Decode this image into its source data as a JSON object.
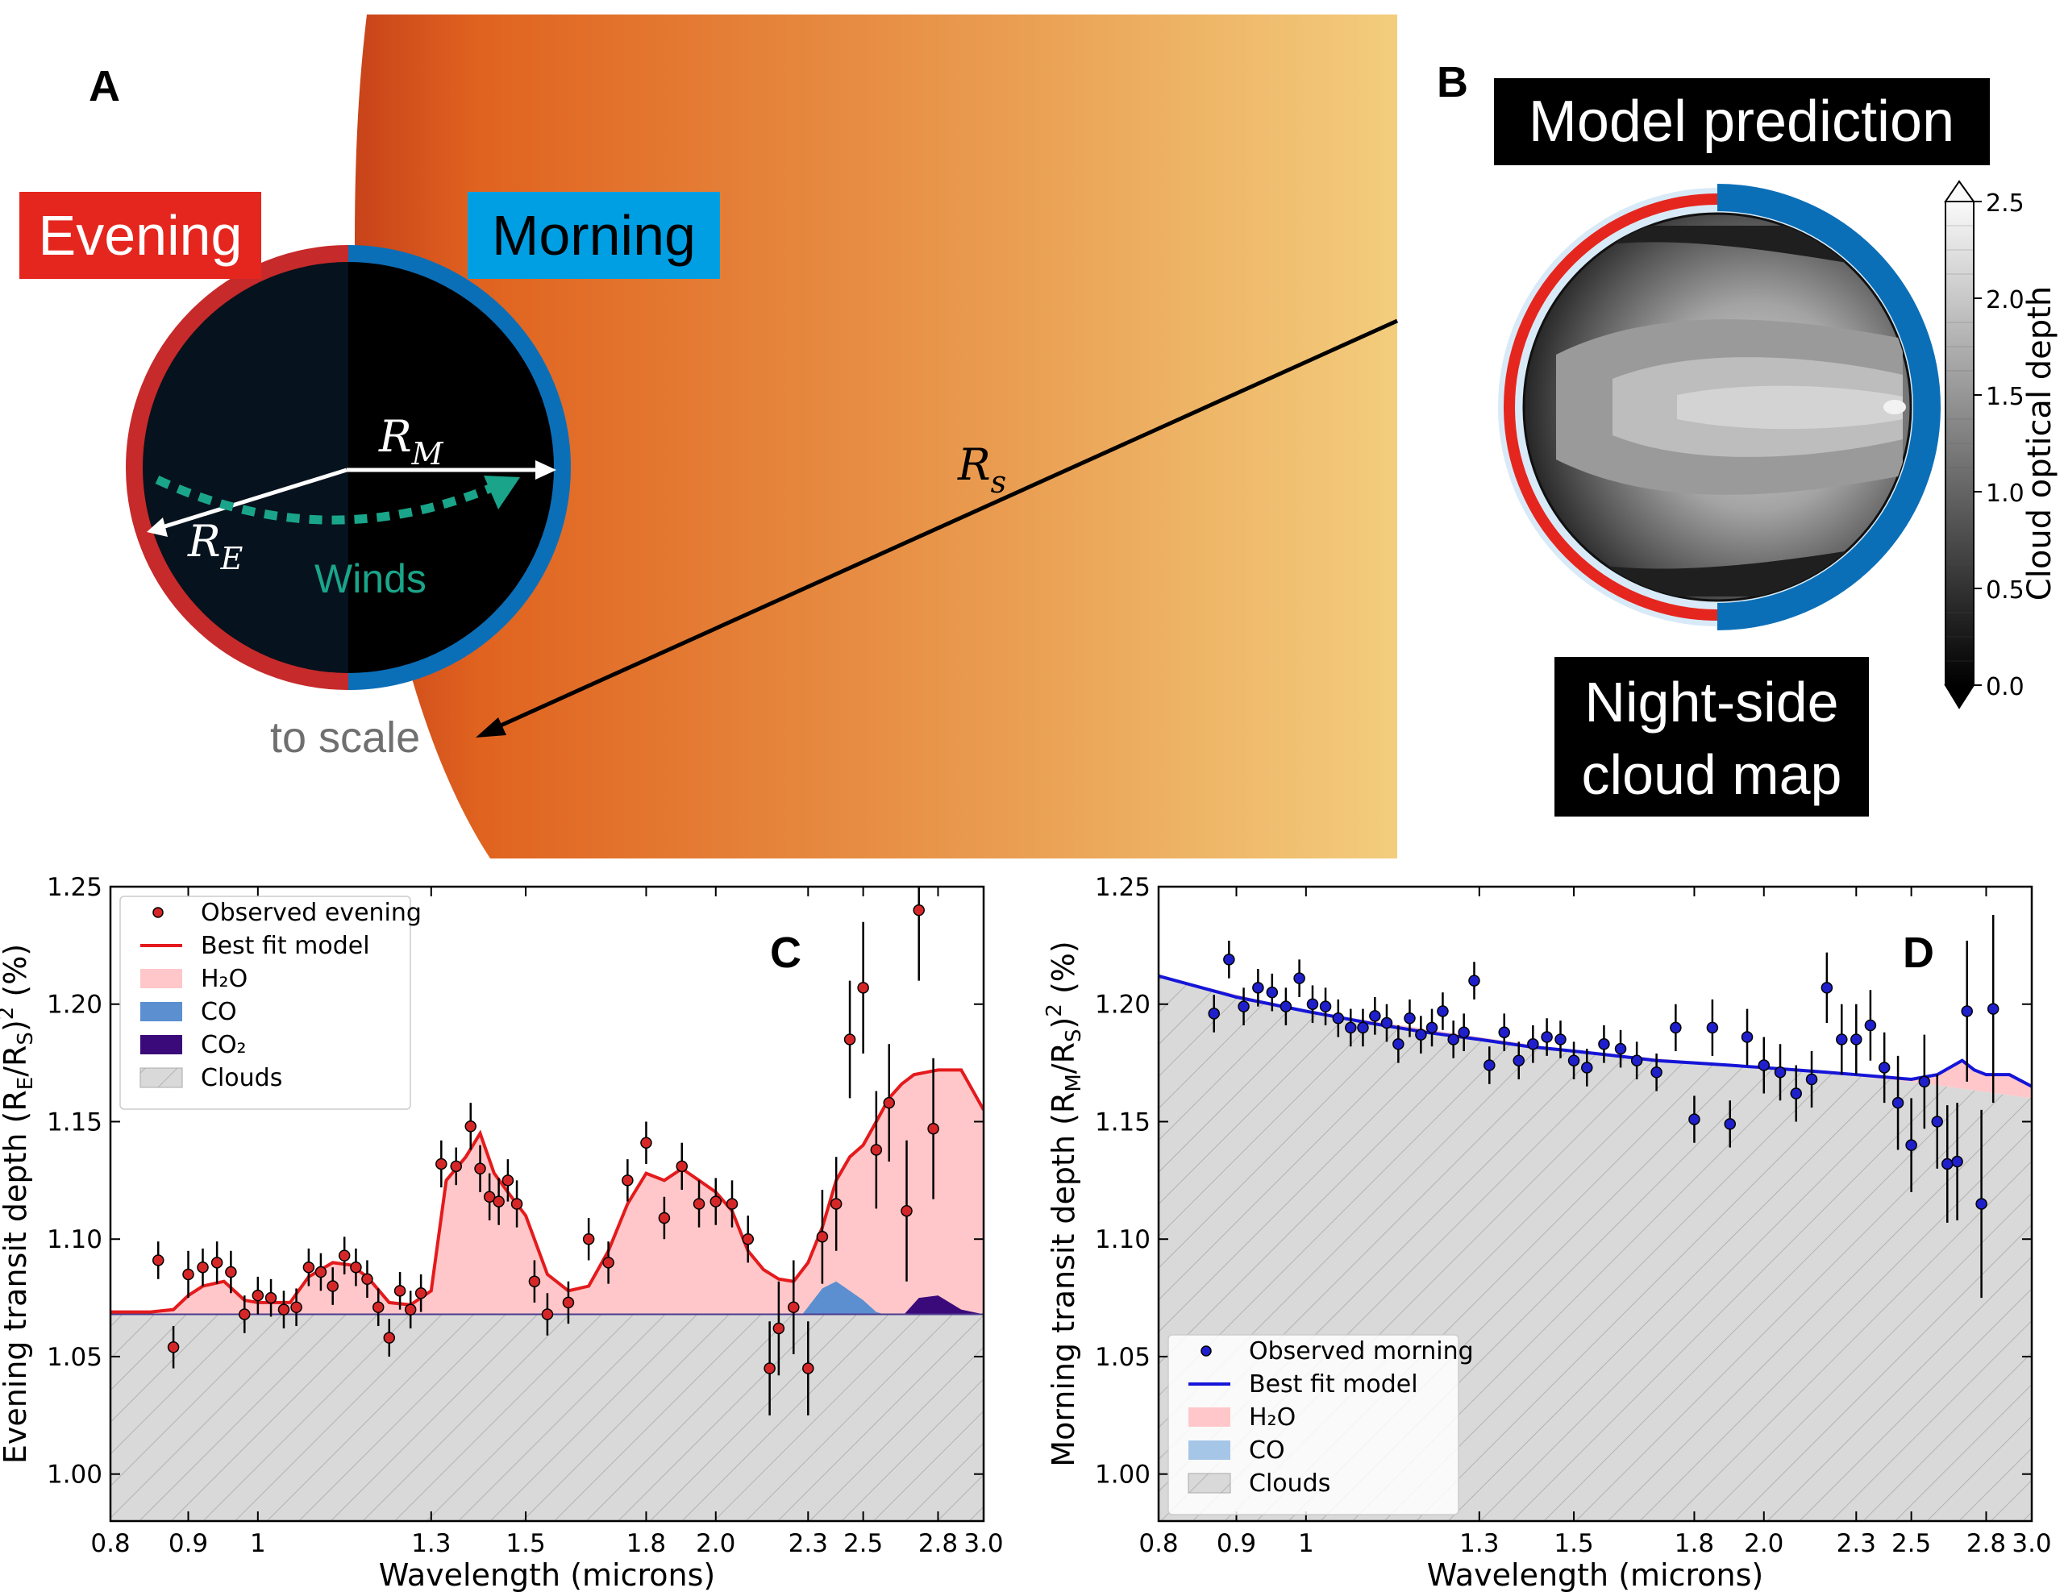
{
  "panel_a": {
    "letter": "A",
    "evening_label": "Evening",
    "morning_label": "Morning",
    "r_m": "R",
    "r_m_sub": "M",
    "r_e": "R",
    "r_e_sub": "E",
    "r_s": "R",
    "r_s_sub": "s",
    "winds": "Winds",
    "scale_note": "to scale",
    "colors": {
      "evening": "#e5261f",
      "morning": "#009fe3",
      "winds": "#1aa58a"
    }
  },
  "panel_b": {
    "letter": "B",
    "title": "Model prediction",
    "caption_line1": "Night-side",
    "caption_line2": "cloud map",
    "colorbar_label": "Cloud optical depth",
    "colorbar_ticks": [
      "0.0",
      "0.5",
      "1.0",
      "1.5",
      "2.0",
      "2.5"
    ]
  },
  "chart_data": [
    {
      "type": "scatter",
      "panel": "C",
      "xlabel": "Wavelength (microns)",
      "ylabel": "Evening transit depth (R_E/R_S)^2 (%)",
      "xscale": "log",
      "xlim": [
        0.8,
        3.0
      ],
      "ylim": [
        0.98,
        1.25
      ],
      "xticks": [
        "0.8",
        "0.9",
        "1",
        "1.3",
        "1.5",
        "1.8",
        "2.0",
        "2.3",
        "2.5",
        "2.8",
        "3.0"
      ],
      "yticks": [
        "1.00",
        "1.05",
        "1.10",
        "1.15",
        "1.20",
        "1.25"
      ],
      "legend": [
        "Observed evening",
        "Best fit model",
        "H₂O",
        "CO",
        "CO₂",
        "Clouds"
      ],
      "legend_position": "upper-left",
      "cloud_level": 1.068,
      "colors": {
        "points": "#d62728",
        "model": "#e41a1c",
        "h2o": "#ffc7c9",
        "co": "#5b8fcf",
        "co2": "#3b0a7a",
        "clouds": "#d9d9d9"
      },
      "observed": [
        [
          0.86,
          1.091,
          0.008
        ],
        [
          0.88,
          1.054,
          0.009
        ],
        [
          0.9,
          1.085,
          0.01
        ],
        [
          0.92,
          1.088,
          0.008
        ],
        [
          0.94,
          1.09,
          0.009
        ],
        [
          0.96,
          1.086,
          0.009
        ],
        [
          0.98,
          1.068,
          0.008
        ],
        [
          1.0,
          1.076,
          0.008
        ],
        [
          1.02,
          1.075,
          0.008
        ],
        [
          1.04,
          1.07,
          0.008
        ],
        [
          1.06,
          1.071,
          0.008
        ],
        [
          1.08,
          1.088,
          0.008
        ],
        [
          1.1,
          1.086,
          0.008
        ],
        [
          1.12,
          1.08,
          0.008
        ],
        [
          1.14,
          1.093,
          0.008
        ],
        [
          1.16,
          1.088,
          0.008
        ],
        [
          1.18,
          1.083,
          0.008
        ],
        [
          1.2,
          1.071,
          0.008
        ],
        [
          1.22,
          1.058,
          0.008
        ],
        [
          1.24,
          1.078,
          0.008
        ],
        [
          1.26,
          1.07,
          0.008
        ],
        [
          1.28,
          1.077,
          0.008
        ],
        [
          1.32,
          1.132,
          0.01
        ],
        [
          1.35,
          1.131,
          0.008
        ],
        [
          1.38,
          1.148,
          0.01
        ],
        [
          1.4,
          1.13,
          0.01
        ],
        [
          1.42,
          1.118,
          0.01
        ],
        [
          1.44,
          1.116,
          0.01
        ],
        [
          1.46,
          1.125,
          0.009
        ],
        [
          1.48,
          1.115,
          0.01
        ],
        [
          1.52,
          1.082,
          0.009
        ],
        [
          1.55,
          1.068,
          0.009
        ],
        [
          1.6,
          1.073,
          0.009
        ],
        [
          1.65,
          1.1,
          0.009
        ],
        [
          1.7,
          1.09,
          0.009
        ],
        [
          1.75,
          1.125,
          0.009
        ],
        [
          1.8,
          1.141,
          0.009
        ],
        [
          1.85,
          1.109,
          0.009
        ],
        [
          1.9,
          1.131,
          0.01
        ],
        [
          1.95,
          1.115,
          0.01
        ],
        [
          2.0,
          1.116,
          0.01
        ],
        [
          2.05,
          1.115,
          0.01
        ],
        [
          2.1,
          1.1,
          0.01
        ],
        [
          2.17,
          1.045,
          0.02
        ],
        [
          2.2,
          1.062,
          0.02
        ],
        [
          2.25,
          1.071,
          0.02
        ],
        [
          2.3,
          1.045,
          0.02
        ],
        [
          2.35,
          1.101,
          0.02
        ],
        [
          2.4,
          1.115,
          0.02
        ],
        [
          2.45,
          1.185,
          0.025
        ],
        [
          2.5,
          1.207,
          0.028
        ],
        [
          2.55,
          1.138,
          0.025
        ],
        [
          2.6,
          1.158,
          0.025
        ],
        [
          2.67,
          1.112,
          0.03
        ],
        [
          2.72,
          1.24,
          0.03
        ],
        [
          2.78,
          1.147,
          0.03
        ]
      ],
      "model": [
        [
          0.8,
          1.069
        ],
        [
          0.85,
          1.069
        ],
        [
          0.88,
          1.07
        ],
        [
          0.9,
          1.076
        ],
        [
          0.92,
          1.08
        ],
        [
          0.95,
          1.082
        ],
        [
          0.98,
          1.074
        ],
        [
          1.0,
          1.073
        ],
        [
          1.05,
          1.073
        ],
        [
          1.08,
          1.084
        ],
        [
          1.12,
          1.09
        ],
        [
          1.15,
          1.089
        ],
        [
          1.18,
          1.084
        ],
        [
          1.22,
          1.073
        ],
        [
          1.26,
          1.072
        ],
        [
          1.3,
          1.078
        ],
        [
          1.33,
          1.125
        ],
        [
          1.37,
          1.135
        ],
        [
          1.4,
          1.145
        ],
        [
          1.43,
          1.128
        ],
        [
          1.46,
          1.12
        ],
        [
          1.5,
          1.11
        ],
        [
          1.55,
          1.085
        ],
        [
          1.6,
          1.078
        ],
        [
          1.65,
          1.08
        ],
        [
          1.7,
          1.095
        ],
        [
          1.75,
          1.115
        ],
        [
          1.8,
          1.128
        ],
        [
          1.85,
          1.125
        ],
        [
          1.9,
          1.13
        ],
        [
          1.95,
          1.125
        ],
        [
          2.0,
          1.12
        ],
        [
          2.05,
          1.112
        ],
        [
          2.1,
          1.095
        ],
        [
          2.15,
          1.087
        ],
        [
          2.2,
          1.083
        ],
        [
          2.25,
          1.082
        ],
        [
          2.3,
          1.09
        ],
        [
          2.35,
          1.105
        ],
        [
          2.4,
          1.125
        ],
        [
          2.45,
          1.135
        ],
        [
          2.5,
          1.14
        ],
        [
          2.55,
          1.15
        ],
        [
          2.6,
          1.16
        ],
        [
          2.65,
          1.166
        ],
        [
          2.7,
          1.17
        ],
        [
          2.8,
          1.172
        ],
        [
          2.9,
          1.172
        ],
        [
          3.0,
          1.155
        ]
      ],
      "co_feature": [
        [
          2.28,
          1.068
        ],
        [
          2.35,
          1.079
        ],
        [
          2.4,
          1.082
        ],
        [
          2.45,
          1.078
        ],
        [
          2.5,
          1.074
        ],
        [
          2.55,
          1.069
        ],
        [
          2.58,
          1.068
        ]
      ],
      "co2_feature": [
        [
          2.66,
          1.068
        ],
        [
          2.72,
          1.075
        ],
        [
          2.8,
          1.076
        ],
        [
          2.9,
          1.07
        ],
        [
          3.0,
          1.068
        ]
      ]
    },
    {
      "type": "scatter",
      "panel": "D",
      "xlabel": "Wavelength (microns)",
      "ylabel": "Morning transit depth (R_M/R_S)^2 (%)",
      "xscale": "log",
      "xlim": [
        0.8,
        3.0
      ],
      "ylim": [
        0.98,
        1.25
      ],
      "xticks": [
        "0.8",
        "0.9",
        "1",
        "1.3",
        "1.5",
        "1.8",
        "2.0",
        "2.3",
        "2.5",
        "2.8",
        "3.0"
      ],
      "yticks": [
        "1.00",
        "1.05",
        "1.10",
        "1.15",
        "1.20",
        "1.25"
      ],
      "legend": [
        "Observed morning",
        "Best fit model",
        "H₂O",
        "CO",
        "Clouds"
      ],
      "legend_position": "lower-left",
      "colors": {
        "points": "#1f1fcc",
        "model": "#1515d8",
        "h2o": "#ffc7c9",
        "co": "#a6c6e8",
        "clouds": "#d9d9d9"
      },
      "observed": [
        [
          0.87,
          1.196,
          0.008
        ],
        [
          0.89,
          1.219,
          0.008
        ],
        [
          0.91,
          1.199,
          0.008
        ],
        [
          0.93,
          1.207,
          0.008
        ],
        [
          0.95,
          1.205,
          0.008
        ],
        [
          0.97,
          1.199,
          0.008
        ],
        [
          0.99,
          1.211,
          0.008
        ],
        [
          1.01,
          1.2,
          0.008
        ],
        [
          1.03,
          1.199,
          0.008
        ],
        [
          1.05,
          1.194,
          0.008
        ],
        [
          1.07,
          1.19,
          0.008
        ],
        [
          1.09,
          1.19,
          0.008
        ],
        [
          1.11,
          1.195,
          0.008
        ],
        [
          1.13,
          1.192,
          0.008
        ],
        [
          1.15,
          1.183,
          0.008
        ],
        [
          1.17,
          1.194,
          0.008
        ],
        [
          1.19,
          1.187,
          0.008
        ],
        [
          1.21,
          1.19,
          0.008
        ],
        [
          1.23,
          1.197,
          0.008
        ],
        [
          1.25,
          1.185,
          0.008
        ],
        [
          1.27,
          1.188,
          0.008
        ],
        [
          1.29,
          1.21,
          0.008
        ],
        [
          1.32,
          1.174,
          0.008
        ],
        [
          1.35,
          1.188,
          0.008
        ],
        [
          1.38,
          1.176,
          0.008
        ],
        [
          1.41,
          1.183,
          0.008
        ],
        [
          1.44,
          1.186,
          0.008
        ],
        [
          1.47,
          1.185,
          0.008
        ],
        [
          1.5,
          1.176,
          0.008
        ],
        [
          1.53,
          1.173,
          0.008
        ],
        [
          1.57,
          1.183,
          0.008
        ],
        [
          1.61,
          1.181,
          0.008
        ],
        [
          1.65,
          1.176,
          0.008
        ],
        [
          1.7,
          1.171,
          0.008
        ],
        [
          1.75,
          1.19,
          0.01
        ],
        [
          1.8,
          1.151,
          0.01
        ],
        [
          1.85,
          1.19,
          0.012
        ],
        [
          1.9,
          1.149,
          0.01
        ],
        [
          1.95,
          1.186,
          0.012
        ],
        [
          2.0,
          1.174,
          0.012
        ],
        [
          2.05,
          1.171,
          0.012
        ],
        [
          2.1,
          1.162,
          0.012
        ],
        [
          2.15,
          1.168,
          0.012
        ],
        [
          2.2,
          1.207,
          0.015
        ],
        [
          2.25,
          1.185,
          0.015
        ],
        [
          2.3,
          1.185,
          0.015
        ],
        [
          2.35,
          1.191,
          0.015
        ],
        [
          2.4,
          1.173,
          0.015
        ],
        [
          2.45,
          1.158,
          0.02
        ],
        [
          2.5,
          1.14,
          0.02
        ],
        [
          2.55,
          1.167,
          0.02
        ],
        [
          2.6,
          1.15,
          0.02
        ],
        [
          2.64,
          1.132,
          0.025
        ],
        [
          2.68,
          1.133,
          0.025
        ],
        [
          2.72,
          1.197,
          0.03
        ],
        [
          2.78,
          1.115,
          0.04
        ],
        [
          2.83,
          1.198,
          0.04
        ]
      ],
      "model": [
        [
          0.8,
          1.212
        ],
        [
          0.9,
          1.203
        ],
        [
          1.0,
          1.197
        ],
        [
          1.1,
          1.192
        ],
        [
          1.2,
          1.188
        ],
        [
          1.3,
          1.185
        ],
        [
          1.4,
          1.182
        ],
        [
          1.5,
          1.18
        ],
        [
          1.6,
          1.178
        ],
        [
          1.7,
          1.176
        ],
        [
          1.8,
          1.175
        ],
        [
          1.9,
          1.174
        ],
        [
          2.0,
          1.173
        ],
        [
          2.1,
          1.172
        ],
        [
          2.2,
          1.171
        ],
        [
          2.3,
          1.17
        ],
        [
          2.4,
          1.169
        ],
        [
          2.5,
          1.168
        ],
        [
          2.6,
          1.17
        ],
        [
          2.7,
          1.176
        ],
        [
          2.75,
          1.172
        ],
        [
          2.8,
          1.17
        ],
        [
          2.9,
          1.17
        ],
        [
          3.0,
          1.165
        ]
      ],
      "cloud_top": [
        [
          0.8,
          1.212
        ],
        [
          1.0,
          1.197
        ],
        [
          1.5,
          1.18
        ],
        [
          2.0,
          1.173
        ],
        [
          2.5,
          1.167
        ],
        [
          3.0,
          1.16
        ]
      ]
    }
  ]
}
